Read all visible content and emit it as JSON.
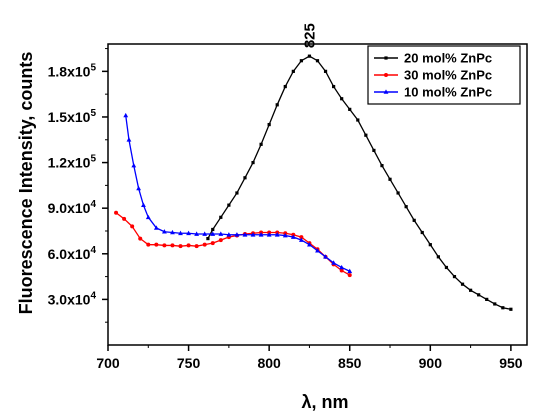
{
  "chart_data": {
    "type": "line",
    "xlabel": "λ, nm",
    "ylabel": "Fluorescence Intensity, counts",
    "xlim": [
      700,
      960
    ],
    "ylim": [
      0,
      198000
    ],
    "xticks": [
      700,
      750,
      800,
      850,
      900,
      950
    ],
    "xtick_labels": [
      "700",
      "750",
      "800",
      "850",
      "900",
      "950"
    ],
    "yticks": [
      30000,
      60000,
      90000,
      120000,
      150000,
      180000
    ],
    "ytick_mantissas": [
      "3.0x10",
      "6.0x10",
      "9.0x10",
      "1.2x10",
      "1.5x10",
      "1.8x10"
    ],
    "ytick_exponents": [
      "4",
      "4",
      "4",
      "5",
      "5",
      "5"
    ],
    "grid": false,
    "legend_position": "top-right",
    "annotations": [
      {
        "text": "825",
        "x": 825,
        "y": 190000
      }
    ],
    "series": [
      {
        "name": "20 mol% ZnPc",
        "color": "#000000",
        "marker": "square",
        "x": [
          762,
          765,
          770,
          775,
          780,
          785,
          790,
          795,
          800,
          805,
          810,
          815,
          820,
          825,
          830,
          835,
          840,
          845,
          850,
          855,
          860,
          865,
          870,
          875,
          880,
          885,
          890,
          895,
          900,
          905,
          910,
          915,
          920,
          925,
          930,
          935,
          940,
          945,
          950
        ],
        "y": [
          70000,
          76000,
          84000,
          92000,
          100000,
          110000,
          120000,
          132000,
          145000,
          158000,
          170000,
          180000,
          187000,
          190000,
          187000,
          180000,
          170000,
          162000,
          155000,
          148000,
          138000,
          128000,
          118000,
          109000,
          100000,
          91000,
          82000,
          74000,
          66000,
          58000,
          51000,
          45000,
          40000,
          36000,
          33000,
          30000,
          27000,
          24500,
          23500
        ]
      },
      {
        "name": "30 mol% ZnPc",
        "color": "#ff0000",
        "marker": "circle",
        "x": [
          705,
          710,
          715,
          720,
          725,
          730,
          735,
          740,
          745,
          750,
          755,
          760,
          765,
          770,
          775,
          780,
          785,
          790,
          795,
          800,
          805,
          810,
          815,
          820,
          825,
          830,
          835,
          840,
          845,
          850
        ],
        "y": [
          87000,
          83000,
          78000,
          70000,
          66000,
          66000,
          65500,
          65500,
          65000,
          65500,
          65000,
          66000,
          67000,
          69000,
          71000,
          72000,
          73000,
          73500,
          74000,
          74000,
          74000,
          73500,
          72500,
          71000,
          67000,
          63000,
          58000,
          53000,
          49000,
          46000
        ]
      },
      {
        "name": "10 mol% ZnPc",
        "color": "#0000ff",
        "marker": "triangle",
        "x": [
          711,
          713,
          716,
          719,
          722,
          725,
          730,
          735,
          740,
          745,
          750,
          755,
          760,
          765,
          770,
          775,
          780,
          785,
          790,
          795,
          800,
          805,
          810,
          815,
          820,
          825,
          830,
          835,
          840,
          845,
          850
        ],
        "y": [
          151000,
          135000,
          118000,
          103000,
          92000,
          84000,
          77000,
          74500,
          74000,
          73500,
          73500,
          73000,
          73000,
          73000,
          73000,
          72500,
          72500,
          72500,
          72500,
          72500,
          72500,
          72500,
          72000,
          71000,
          69000,
          66000,
          62000,
          58000,
          54000,
          51000,
          48500
        ]
      }
    ]
  }
}
